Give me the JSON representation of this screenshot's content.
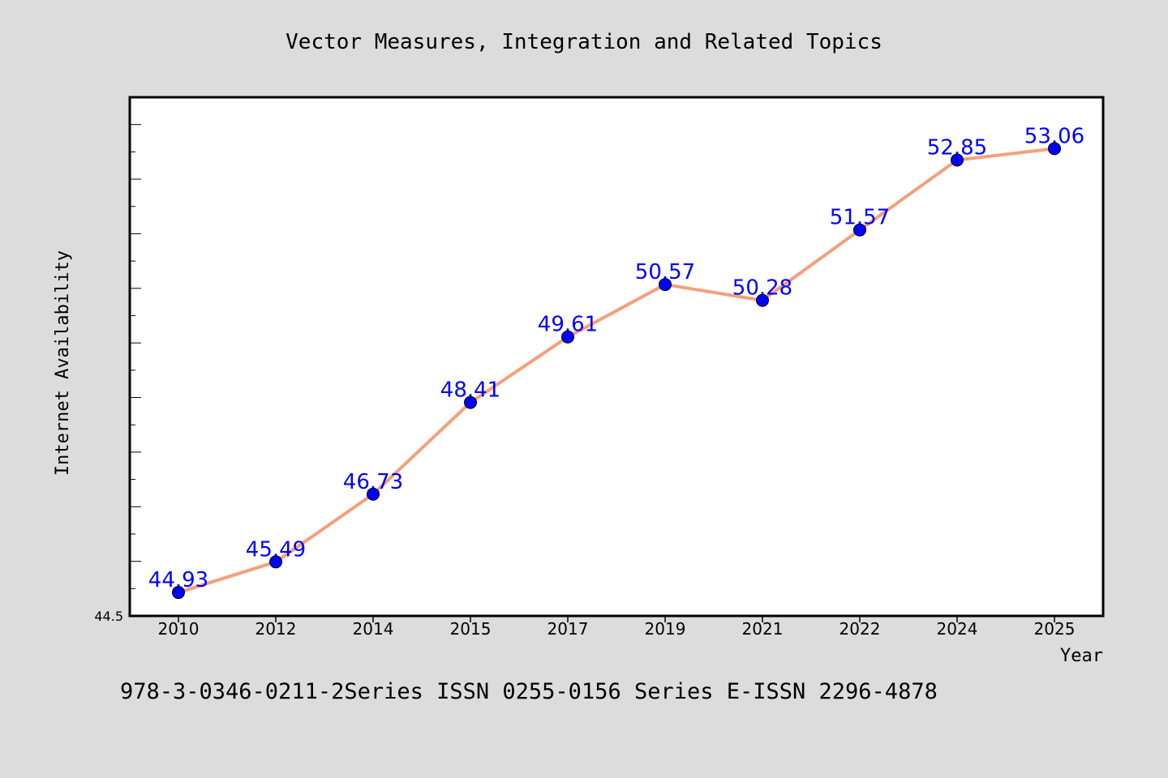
{
  "chart_data": {
    "type": "line",
    "title": "Vector Measures, Integration and Related Topics",
    "xlabel": "Year",
    "ylabel": "Internet Availability",
    "categories": [
      "2010",
      "2012",
      "2014",
      "2015",
      "2017",
      "2019",
      "2021",
      "2022",
      "2024",
      "2025"
    ],
    "series": [
      {
        "values": [
          44.93,
          45.49,
          46.73,
          48.41,
          49.61,
          50.57,
          50.28,
          51.57,
          52.85,
          53.06
        ],
        "labels": [
          "44.93",
          "45.49",
          "46.73",
          "48.41",
          "49.61",
          "50.57",
          "50.28",
          "51.57",
          "52.85",
          "53.06"
        ]
      }
    ],
    "ylim": [
      44.5,
      54.0
    ],
    "y_tick_label": "44.5",
    "footnote": "978-3-0346-0211-2Series ISSN 0255-0156 Series E-ISSN 2296-4878",
    "grid": false,
    "colors": {
      "background": "#dcdcdc",
      "plot_background": "#ffffff",
      "line": "#f4a07a",
      "marker": "#0000ff",
      "data_label": "#0000ff",
      "text": "#000000"
    }
  }
}
